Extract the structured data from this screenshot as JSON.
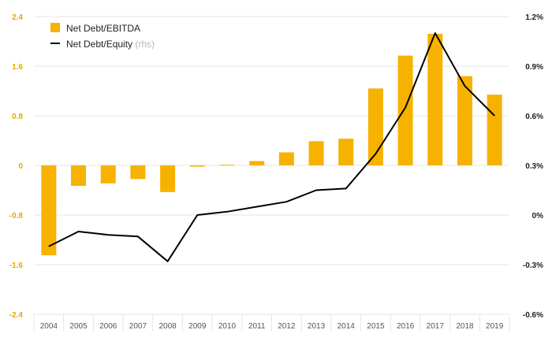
{
  "chart_data": {
    "type": "bar",
    "categories": [
      "2004",
      "2005",
      "2006",
      "2007",
      "2008",
      "2009",
      "2010",
      "2011",
      "2012",
      "2013",
      "2014",
      "2015",
      "2016",
      "2017",
      "2018",
      "2019"
    ],
    "series": [
      {
        "name": "Net Debt/EBITDA",
        "type": "bar",
        "axis": "left",
        "color": "#f7b200",
        "values": [
          -1.45,
          -0.33,
          -0.29,
          -0.22,
          -0.43,
          -0.02,
          0.01,
          0.07,
          0.21,
          0.39,
          0.43,
          1.24,
          1.77,
          2.12,
          1.44,
          1.14
        ]
      },
      {
        "name": "Net Debt/Equity",
        "name_note": "(rhs)",
        "type": "line",
        "axis": "right",
        "color": "#000000",
        "values": [
          -0.19,
          -0.1,
          -0.12,
          -0.13,
          -0.28,
          0.0,
          0.02,
          0.05,
          0.08,
          0.15,
          0.16,
          0.37,
          0.65,
          1.1,
          0.78,
          0.6
        ]
      }
    ],
    "y_left": {
      "lim": [
        -2.4,
        2.4
      ],
      "ticks": [
        2.4,
        1.6,
        0.8,
        0,
        -0.8,
        -1.6,
        -2.4
      ],
      "tick_labels": [
        "2.4",
        "1.6",
        "0.8",
        "0",
        "-0.8",
        "-1.6",
        "-2.4"
      ],
      "color": "#e8a800"
    },
    "y_right": {
      "lim": [
        -0.6,
        1.2
      ],
      "ticks": [
        1.2,
        0.9,
        0.6,
        0.3,
        0,
        -0.3,
        -0.6
      ],
      "tick_labels": [
        "1.2%",
        "0.9%",
        "0.6%",
        "0.3%",
        "0%",
        "-0.3%",
        "-0.6%"
      ],
      "color": "#222222"
    },
    "grid": true,
    "legend_position": "top-left",
    "title": "",
    "xlabel": "",
    "ylabel": ""
  }
}
